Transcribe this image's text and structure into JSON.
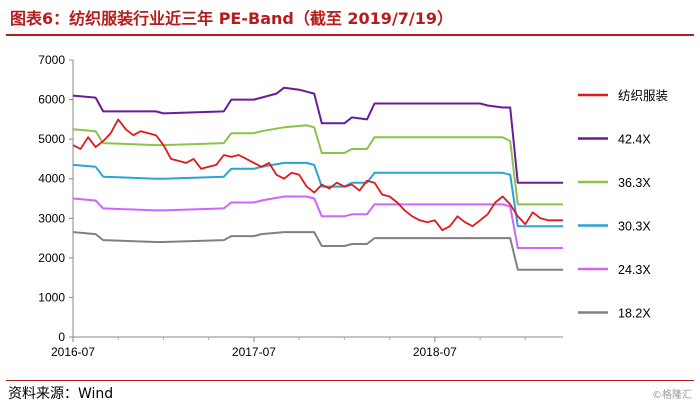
{
  "title": "图表6：纺织服装行业近三年 PE-Band（截至 2019/7/19）",
  "source": "资料来源：Wind",
  "watermark": "©格隆汇",
  "chart_data": {
    "type": "line",
    "title": "图表6：纺织服装行业近三年 PE-Band（截至 2019/7/19）",
    "xlabel": "",
    "ylabel": "",
    "ylim": [
      0,
      7000
    ],
    "yticks": [
      0,
      1000,
      2000,
      3000,
      4000,
      5000,
      6000,
      7000
    ],
    "x_ticks": [
      "2016-07",
      "2017-07",
      "2018-07"
    ],
    "grid": false,
    "legend_position": "right",
    "x_units": "months since 2016-07",
    "series": [
      {
        "name": "纺织服装",
        "color": "#e0191c",
        "points": [
          [
            0.0,
            4850
          ],
          [
            0.5,
            4750
          ],
          [
            1.0,
            5050
          ],
          [
            1.5,
            4800
          ],
          [
            2.0,
            4950
          ],
          [
            2.5,
            5150
          ],
          [
            3.0,
            5500
          ],
          [
            3.5,
            5250
          ],
          [
            4.0,
            5100
          ],
          [
            4.5,
            5200
          ],
          [
            5.0,
            5150
          ],
          [
            5.5,
            5100
          ],
          [
            6.0,
            4850
          ],
          [
            6.5,
            4500
          ],
          [
            7.0,
            4450
          ],
          [
            7.5,
            4400
          ],
          [
            8.0,
            4500
          ],
          [
            8.5,
            4250
          ],
          [
            9.0,
            4300
          ],
          [
            9.5,
            4350
          ],
          [
            10.0,
            4600
          ],
          [
            10.5,
            4550
          ],
          [
            11.0,
            4600
          ],
          [
            11.5,
            4500
          ],
          [
            12.0,
            4400
          ],
          [
            12.5,
            4300
          ],
          [
            13.0,
            4400
          ],
          [
            13.5,
            4100
          ],
          [
            14.0,
            4000
          ],
          [
            14.5,
            4150
          ],
          [
            15.0,
            4100
          ],
          [
            15.5,
            3800
          ],
          [
            16.0,
            3650
          ],
          [
            16.5,
            3850
          ],
          [
            17.0,
            3750
          ],
          [
            17.5,
            3900
          ],
          [
            18.0,
            3800
          ],
          [
            18.5,
            3850
          ],
          [
            19.0,
            3700
          ],
          [
            19.5,
            3950
          ],
          [
            20.0,
            3900
          ],
          [
            20.5,
            3600
          ],
          [
            21.0,
            3550
          ],
          [
            21.5,
            3400
          ],
          [
            22.0,
            3200
          ],
          [
            22.5,
            3050
          ],
          [
            23.0,
            2950
          ],
          [
            23.5,
            2900
          ],
          [
            24.0,
            2950
          ],
          [
            24.5,
            2700
          ],
          [
            25.0,
            2800
          ],
          [
            25.5,
            3050
          ],
          [
            26.0,
            2900
          ],
          [
            26.5,
            2800
          ],
          [
            27.0,
            2950
          ],
          [
            27.5,
            3100
          ],
          [
            28.0,
            3400
          ],
          [
            28.5,
            3550
          ],
          [
            29.0,
            3350
          ],
          [
            29.5,
            3050
          ],
          [
            30.0,
            2850
          ],
          [
            30.5,
            3150
          ],
          [
            31.0,
            3000
          ],
          [
            31.5,
            2950
          ],
          [
            32.0,
            2950
          ],
          [
            32.5,
            2950
          ]
        ]
      },
      {
        "name": "42.4X",
        "color": "#6a1b9a",
        "points": [
          [
            0.0,
            6100
          ],
          [
            1.5,
            6050
          ],
          [
            2.0,
            5700
          ],
          [
            5.5,
            5700
          ],
          [
            6.0,
            5650
          ],
          [
            10.0,
            5700
          ],
          [
            10.5,
            6000
          ],
          [
            12.0,
            6000
          ],
          [
            12.5,
            6050
          ],
          [
            13.5,
            6150
          ],
          [
            14.0,
            6300
          ],
          [
            15.0,
            6250
          ],
          [
            15.5,
            6200
          ],
          [
            16.0,
            6150
          ],
          [
            16.5,
            5400
          ],
          [
            18.0,
            5400
          ],
          [
            18.5,
            5550
          ],
          [
            19.5,
            5500
          ],
          [
            20.0,
            5900
          ],
          [
            27.0,
            5900
          ],
          [
            27.5,
            5850
          ],
          [
            28.5,
            5800
          ],
          [
            29.0,
            5800
          ],
          [
            29.5,
            3900
          ],
          [
            32.5,
            3900
          ]
        ]
      },
      {
        "name": "36.3X",
        "color": "#8bc34a",
        "points": [
          [
            0.0,
            5250
          ],
          [
            1.5,
            5200
          ],
          [
            2.0,
            4900
          ],
          [
            5.5,
            4850
          ],
          [
            6.0,
            4850
          ],
          [
            10.0,
            4900
          ],
          [
            10.5,
            5150
          ],
          [
            12.0,
            5150
          ],
          [
            12.5,
            5200
          ],
          [
            14.0,
            5300
          ],
          [
            15.5,
            5350
          ],
          [
            16.0,
            5300
          ],
          [
            16.5,
            4650
          ],
          [
            18.0,
            4650
          ],
          [
            18.5,
            4750
          ],
          [
            19.5,
            4750
          ],
          [
            20.0,
            5050
          ],
          [
            28.5,
            5050
          ],
          [
            29.0,
            4950
          ],
          [
            29.5,
            3350
          ],
          [
            32.5,
            3350
          ]
        ]
      },
      {
        "name": "30.3X",
        "color": "#29a3d4",
        "points": [
          [
            0.0,
            4350
          ],
          [
            1.5,
            4300
          ],
          [
            2.0,
            4050
          ],
          [
            5.5,
            4000
          ],
          [
            6.0,
            4000
          ],
          [
            10.0,
            4050
          ],
          [
            10.5,
            4250
          ],
          [
            12.0,
            4250
          ],
          [
            12.5,
            4300
          ],
          [
            14.0,
            4400
          ],
          [
            15.5,
            4400
          ],
          [
            16.0,
            4350
          ],
          [
            16.5,
            3800
          ],
          [
            18.0,
            3800
          ],
          [
            18.5,
            3900
          ],
          [
            19.5,
            3900
          ],
          [
            20.0,
            4150
          ],
          [
            28.5,
            4150
          ],
          [
            29.0,
            4100
          ],
          [
            29.5,
            2800
          ],
          [
            32.5,
            2800
          ]
        ]
      },
      {
        "name": "24.3X",
        "color": "#cc66ff",
        "points": [
          [
            0.0,
            3500
          ],
          [
            1.5,
            3450
          ],
          [
            2.0,
            3250
          ],
          [
            5.5,
            3200
          ],
          [
            6.0,
            3200
          ],
          [
            10.0,
            3250
          ],
          [
            10.5,
            3400
          ],
          [
            12.0,
            3400
          ],
          [
            12.5,
            3450
          ],
          [
            14.0,
            3550
          ],
          [
            15.5,
            3550
          ],
          [
            16.0,
            3500
          ],
          [
            16.5,
            3050
          ],
          [
            18.0,
            3050
          ],
          [
            18.5,
            3100
          ],
          [
            19.5,
            3100
          ],
          [
            20.0,
            3350
          ],
          [
            28.5,
            3350
          ],
          [
            29.0,
            3300
          ],
          [
            29.5,
            2250
          ],
          [
            32.5,
            2250
          ]
        ]
      },
      {
        "name": "18.2X",
        "color": "#808080",
        "points": [
          [
            0.0,
            2650
          ],
          [
            1.5,
            2600
          ],
          [
            2.0,
            2450
          ],
          [
            5.5,
            2400
          ],
          [
            6.0,
            2400
          ],
          [
            10.0,
            2450
          ],
          [
            10.5,
            2550
          ],
          [
            12.0,
            2550
          ],
          [
            12.5,
            2600
          ],
          [
            14.0,
            2650
          ],
          [
            15.5,
            2650
          ],
          [
            16.0,
            2650
          ],
          [
            16.5,
            2300
          ],
          [
            18.0,
            2300
          ],
          [
            18.5,
            2350
          ],
          [
            19.5,
            2350
          ],
          [
            20.0,
            2500
          ],
          [
            28.5,
            2500
          ],
          [
            29.0,
            2500
          ],
          [
            29.5,
            1700
          ],
          [
            32.5,
            1700
          ]
        ]
      }
    ]
  }
}
